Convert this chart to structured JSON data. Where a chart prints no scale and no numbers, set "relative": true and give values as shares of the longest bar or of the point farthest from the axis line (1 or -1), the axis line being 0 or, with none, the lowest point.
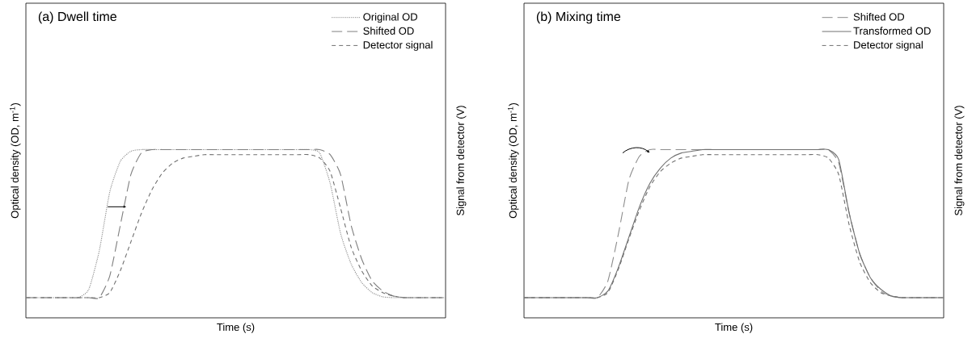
{
  "chart_data": [
    {
      "type": "line",
      "title": "(a) Dwell time",
      "xlabel": "Time (s)",
      "ylabel": "Optical density (OD, m$^{-1}$)",
      "y2label": "Signal from detector (V)",
      "relative": true,
      "legend": "top right",
      "tick_labels": false,
      "categories": [
        null,
        null,
        null,
        null,
        null,
        null,
        null,
        null,
        null,
        null,
        null,
        null,
        null,
        null,
        null,
        null,
        null,
        null,
        null,
        null,
        null,
        null,
        null,
        null,
        null,
        null,
        null,
        null,
        null,
        null,
        null,
        null,
        null,
        null,
        null,
        null,
        null,
        null,
        null,
        null,
        null
      ],
      "series": [
        {
          "name": "Original OD",
          "color": "#8c8c8c",
          "line_style": "dotted",
          "values": [
            0.12,
            0.12,
            0.12,
            0.12,
            0.12,
            0.12,
            0.17,
            0.4,
            0.75,
            0.93,
            0.99,
            1.0,
            1.0,
            1.0,
            1.0,
            1.0,
            1.0,
            1.0,
            1.0,
            1.0,
            1.0,
            1.0,
            1.0,
            1.0,
            1.0,
            1.0,
            1.0,
            1.0,
            0.98,
            0.8,
            0.5,
            0.32,
            0.21,
            0.15,
            0.125,
            0.12,
            0.12,
            0.12,
            0.12,
            0.12,
            0.12
          ]
        },
        {
          "name": "Shifted OD",
          "color": "#7f7f7f",
          "line_style": "long dashed",
          "values": [
            0.12,
            0.12,
            0.12,
            0.12,
            0.12,
            0.12,
            0.12,
            0.12,
            0.25,
            0.55,
            0.85,
            0.98,
            1.0,
            1.0,
            1.0,
            1.0,
            1.0,
            1.0,
            1.0,
            1.0,
            1.0,
            1.0,
            1.0,
            1.0,
            1.0,
            1.0,
            1.0,
            1.0,
            1.0,
            0.97,
            0.85,
            0.55,
            0.35,
            0.22,
            0.16,
            0.13,
            0.12,
            0.12,
            0.12,
            0.12,
            0.12
          ]
        },
        {
          "name": "Detector signal",
          "color": "#707070",
          "line_style": "dashed",
          "values": [
            0.12,
            0.12,
            0.12,
            0.12,
            0.12,
            0.12,
            0.12,
            0.12,
            0.15,
            0.28,
            0.45,
            0.62,
            0.76,
            0.86,
            0.92,
            0.95,
            0.96,
            0.97,
            0.97,
            0.97,
            0.97,
            0.97,
            0.97,
            0.97,
            0.97,
            0.97,
            0.97,
            0.97,
            0.95,
            0.87,
            0.65,
            0.42,
            0.28,
            0.19,
            0.15,
            0.13,
            0.12,
            0.12,
            0.12,
            0.12,
            0.12
          ]
        }
      ]
    },
    {
      "type": "line",
      "title": "(b) Mixing time",
      "xlabel": "Time (s)",
      "ylabel": "Optical density (OD, m$^{-1}$)",
      "y2label": "Signal from detector (V)",
      "relative": true,
      "legend": "top right",
      "tick_labels": false,
      "categories": [
        null,
        null,
        null,
        null,
        null,
        null,
        null,
        null,
        null,
        null,
        null,
        null,
        null,
        null,
        null,
        null,
        null,
        null,
        null,
        null,
        null,
        null,
        null,
        null,
        null,
        null,
        null,
        null,
        null,
        null,
        null,
        null,
        null,
        null,
        null,
        null,
        null,
        null,
        null,
        null,
        null
      ],
      "series": [
        {
          "name": "Shifted OD",
          "color": "#8c8c8c",
          "line_style": "long dashed",
          "values": [
            0.12,
            0.12,
            0.12,
            0.12,
            0.12,
            0.12,
            0.12,
            0.12,
            0.22,
            0.5,
            0.82,
            0.96,
            1.0,
            1.0,
            1.0,
            1.0,
            1.0,
            1.0,
            1.0,
            1.0,
            1.0,
            1.0,
            1.0,
            1.0,
            1.0,
            1.0,
            1.0,
            1.0,
            1.0,
            1.0,
            0.92,
            0.62,
            0.38,
            0.24,
            0.16,
            0.13,
            0.12,
            0.12,
            0.12,
            0.12,
            0.12
          ]
        },
        {
          "name": "Transformed OD",
          "color": "#707070",
          "line_style": "solid",
          "values": [
            0.12,
            0.12,
            0.12,
            0.12,
            0.12,
            0.12,
            0.12,
            0.12,
            0.16,
            0.3,
            0.48,
            0.66,
            0.8,
            0.89,
            0.95,
            0.98,
            0.99,
            1.0,
            1.0,
            1.0,
            1.0,
            1.0,
            1.0,
            1.0,
            1.0,
            1.0,
            1.0,
            1.0,
            1.0,
            1.0,
            0.94,
            0.62,
            0.38,
            0.24,
            0.17,
            0.13,
            0.12,
            0.12,
            0.12,
            0.12,
            0.12
          ]
        },
        {
          "name": "Detector signal",
          "color": "#707070",
          "line_style": "dashed",
          "values": [
            0.12,
            0.12,
            0.12,
            0.12,
            0.12,
            0.12,
            0.12,
            0.12,
            0.15,
            0.29,
            0.47,
            0.64,
            0.78,
            0.87,
            0.92,
            0.95,
            0.96,
            0.97,
            0.97,
            0.97,
            0.97,
            0.97,
            0.97,
            0.97,
            0.97,
            0.97,
            0.97,
            0.97,
            0.97,
            0.95,
            0.85,
            0.55,
            0.33,
            0.21,
            0.15,
            0.13,
            0.12,
            0.12,
            0.12,
            0.12,
            0.12
          ]
        }
      ]
    }
  ]
}
